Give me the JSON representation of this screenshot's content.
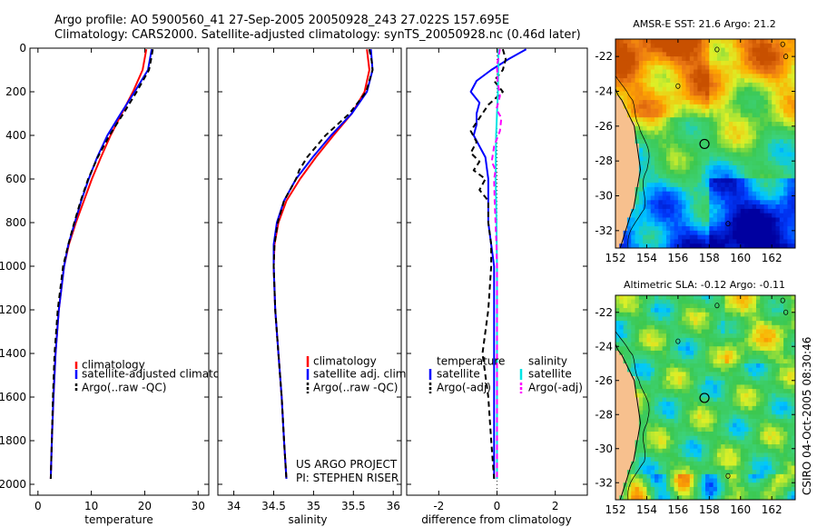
{
  "header": {
    "line1": "Argo profile: AO 5900560_41 27-Sep-2005 20050928_243 27.022S 157.695E",
    "line2": "Climatology: CARS2000. Satellite-adjusted climatology: synTS_20050928.nc (0.46d later)"
  },
  "side_stamp": "CSIRO 04-Oct-2005 08:30:46",
  "project_note": {
    "line1": "US ARGO PROJECT",
    "line2": "PI: STEPHEN RISER"
  },
  "colors": {
    "climatology": "#ff0000",
    "satellite": "#0000ff",
    "argo": "#000000",
    "sal_sat": "#00e5e5",
    "sal_argo": "#ff00ff",
    "ocean_deep": "#3fbf6a",
    "land": "#f7c08e"
  },
  "chart_data": [
    {
      "id": "temperature",
      "type": "line",
      "xlabel": "temperature",
      "ylabel": "",
      "xlim": [
        -1.5,
        32
      ],
      "ylim": [
        2050,
        0
      ],
      "xticks": [
        0,
        10,
        20,
        30
      ],
      "yticks": [
        0,
        200,
        400,
        600,
        800,
        1000,
        1200,
        1400,
        1600,
        1800,
        2000
      ],
      "legend": [
        "climatology",
        "satellite-adjusted climatology",
        "Argo(..raw -QC)"
      ],
      "series": [
        {
          "name": "climatology",
          "color": "#ff0000",
          "dash": false,
          "depth": [
            5,
            100,
            200,
            300,
            400,
            500,
            600,
            700,
            800,
            900,
            1000,
            1200,
            1400,
            1600,
            1800,
            1975
          ],
          "values": [
            20.3,
            19.6,
            17.8,
            15.7,
            13.6,
            11.8,
            10.1,
            8.6,
            7.1,
            5.8,
            4.9,
            3.9,
            3.3,
            2.9,
            2.6,
            2.4
          ]
        },
        {
          "name": "satellite-adjusted climatology",
          "color": "#0000ff",
          "dash": false,
          "depth": [
            5,
            100,
            200,
            300,
            400,
            500,
            600,
            700,
            800,
            900,
            1000,
            1200,
            1400,
            1600,
            1800,
            1975
          ],
          "values": [
            21.3,
            20.6,
            18.1,
            15.5,
            13.0,
            11.1,
            9.5,
            8.1,
            6.9,
            5.7,
            4.9,
            3.9,
            3.3,
            2.9,
            2.6,
            2.4
          ]
        },
        {
          "name": "Argo(..raw -QC)",
          "color": "#000000",
          "dash": true,
          "depth": [
            5,
            50,
            100,
            200,
            300,
            400,
            500,
            550,
            600,
            700,
            800,
            900,
            1000,
            1200,
            1400,
            1600,
            1800,
            1975
          ],
          "values": [
            21.5,
            21.2,
            20.8,
            18.5,
            16.0,
            13.4,
            11.2,
            10.3,
            9.4,
            8.0,
            6.8,
            5.7,
            4.7,
            3.7,
            3.1,
            2.8,
            2.6,
            2.4
          ]
        }
      ]
    },
    {
      "id": "salinity",
      "type": "line",
      "xlabel": "salinity",
      "ylabel": "",
      "xlim": [
        33.8,
        36.1
      ],
      "ylim": [
        2050,
        0
      ],
      "xticks": [
        34,
        34.5,
        35,
        35.5,
        36
      ],
      "xticklabels": [
        "34",
        "34.5",
        "35",
        "35.5",
        "36"
      ],
      "legend": [
        "climatology",
        "satellite adj. clim.",
        "Argo(..raw -QC)"
      ],
      "series": [
        {
          "name": "climatology",
          "color": "#ff0000",
          "dash": false,
          "depth": [
            5,
            100,
            200,
            300,
            400,
            500,
            600,
            700,
            800,
            900,
            1000,
            1200,
            1400,
            1600,
            1800,
            1975
          ],
          "values": [
            35.67,
            35.7,
            35.64,
            35.48,
            35.25,
            35.03,
            34.83,
            34.66,
            34.56,
            34.51,
            34.5,
            34.52,
            34.56,
            34.6,
            34.63,
            34.66
          ]
        },
        {
          "name": "satellite adj. clim.",
          "color": "#0000ff",
          "dash": false,
          "depth": [
            5,
            100,
            200,
            300,
            400,
            500,
            600,
            700,
            800,
            900,
            1000,
            1200,
            1400,
            1600,
            1800,
            1975
          ],
          "values": [
            35.72,
            35.74,
            35.67,
            35.48,
            35.22,
            34.99,
            34.78,
            34.63,
            34.54,
            34.5,
            34.5,
            34.52,
            34.56,
            34.6,
            34.63,
            34.66
          ]
        },
        {
          "name": "Argo(..raw -QC)",
          "color": "#000000",
          "dash": true,
          "depth": [
            5,
            60,
            100,
            200,
            300,
            400,
            500,
            560,
            600,
            700,
            800,
            900,
            1000,
            1200,
            1400,
            1600,
            1800,
            1975
          ],
          "values": [
            35.7,
            35.73,
            35.74,
            35.66,
            35.45,
            35.15,
            34.92,
            34.82,
            34.78,
            34.63,
            34.55,
            34.51,
            34.5,
            34.52,
            34.56,
            34.6,
            34.63,
            34.66
          ]
        }
      ]
    },
    {
      "id": "difference",
      "type": "line",
      "xlabel": "difference from climatology",
      "ylabel": "",
      "xlim": [
        -3.1,
        3.1
      ],
      "ylim": [
        2050,
        0
      ],
      "xticks": [
        -2,
        0,
        2
      ],
      "legend_titles": [
        "temperature",
        "salinity"
      ],
      "legend": [
        "satellite",
        "Argo(-adj)",
        "satellite",
        "Argo(-adj)"
      ],
      "series": [
        {
          "name": "temperature satellite",
          "color": "#0000ff",
          "dash": false,
          "depth": [
            5,
            50,
            100,
            150,
            200,
            250,
            300,
            350,
            400,
            450,
            500,
            600,
            700,
            800,
            900,
            1000,
            1200,
            1400,
            1600,
            1800,
            1975
          ],
          "values": [
            1.0,
            0.4,
            -0.2,
            -0.7,
            -0.9,
            -0.6,
            -0.7,
            -0.7,
            -0.8,
            -0.6,
            -0.4,
            -0.3,
            -0.3,
            -0.3,
            -0.2,
            -0.1,
            -0.1,
            -0.1,
            -0.1,
            -0.1,
            -0.1
          ]
        },
        {
          "name": "temperature Argo(-adj)",
          "color": "#000000",
          "dash": true,
          "depth": [
            5,
            50,
            100,
            150,
            200,
            260,
            320,
            380,
            430,
            480,
            520,
            560,
            600,
            650,
            700,
            800,
            900,
            1000,
            1200,
            1400,
            1600,
            1800,
            1975
          ],
          "values": [
            0.2,
            0.3,
            0.2,
            -0.1,
            0.2,
            -0.3,
            -0.6,
            -0.9,
            -0.7,
            -0.9,
            -0.6,
            -0.8,
            -0.4,
            -0.6,
            -0.3,
            -0.3,
            -0.2,
            -0.2,
            -0.3,
            -0.5,
            -0.3,
            -0.2,
            -0.1
          ]
        },
        {
          "name": "salinity satellite",
          "color": "#00e5e5",
          "dash": false,
          "depth": [
            5,
            100,
            200,
            300,
            400,
            500,
            600,
            700,
            800,
            900,
            1000,
            1200,
            1400,
            1600,
            1800,
            1975
          ],
          "values": [
            0.05,
            0.04,
            0.03,
            0.0,
            -0.03,
            -0.04,
            -0.05,
            -0.03,
            -0.02,
            -0.01,
            0.0,
            0.0,
            0.0,
            0.0,
            0.0,
            0.0
          ]
        },
        {
          "name": "salinity Argo(-adj)",
          "color": "#ff00ff",
          "dash": true,
          "depth": [
            5,
            80,
            150,
            220,
            280,
            320,
            380,
            450,
            520,
            560,
            600,
            700,
            800,
            900,
            1000,
            1200,
            1400,
            1600,
            1800,
            1975
          ],
          "values": [
            0.1,
            0.0,
            0.02,
            0.1,
            -0.02,
            0.15,
            0.1,
            -0.1,
            -0.18,
            -0.05,
            -0.1,
            -0.08,
            -0.05,
            -0.02,
            0.0,
            0.0,
            0.0,
            0.0,
            0.0,
            0.0
          ]
        }
      ]
    },
    {
      "id": "sst_map",
      "type": "heatmap",
      "title": "AMSR-E SST: 21.6 Argo: 21.2",
      "xlim": [
        152,
        163.5
      ],
      "ylim": [
        -33,
        -21
      ],
      "xticks": [
        152,
        154,
        156,
        158,
        160,
        162
      ],
      "yticks": [
        -22,
        -24,
        -26,
        -28,
        -30,
        -32
      ],
      "marker": [
        157.695,
        -27.022
      ],
      "field": "sst"
    },
    {
      "id": "sla_map",
      "type": "heatmap",
      "title": "Altimetric SLA: -0.12 Argo: -0.11",
      "xlim": [
        152,
        163.5
      ],
      "ylim": [
        -33,
        -21
      ],
      "xticks": [
        152,
        154,
        156,
        158,
        160,
        162
      ],
      "yticks": [
        -22,
        -24,
        -26,
        -28,
        -30,
        -32
      ],
      "marker": [
        157.695,
        -27.022
      ],
      "field": "sla"
    }
  ]
}
